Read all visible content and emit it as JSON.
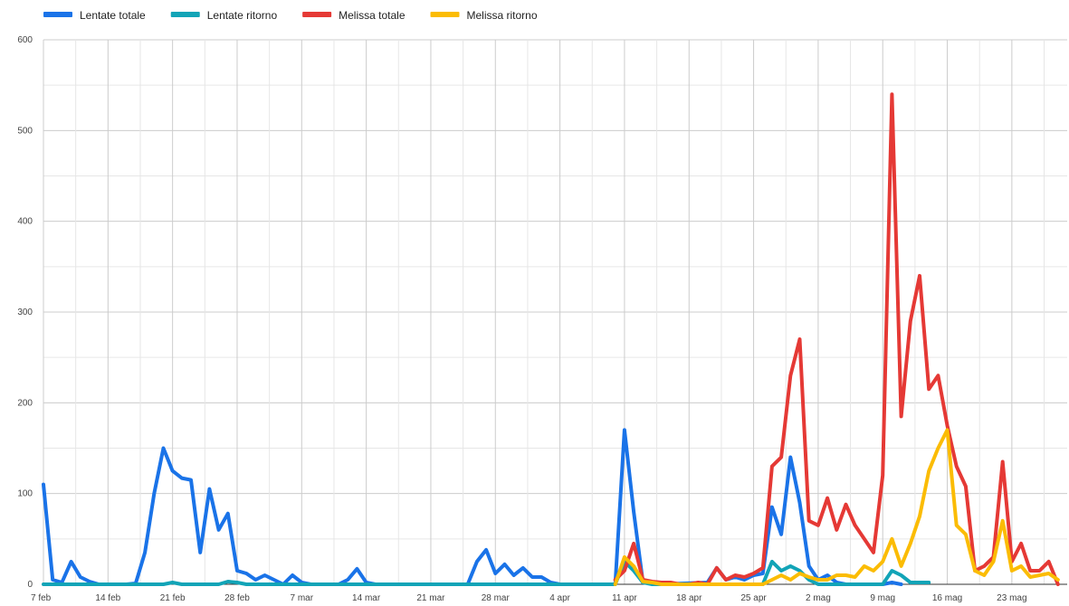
{
  "chart_data": {
    "type": "line",
    "title": "",
    "xlabel": "",
    "ylabel": "",
    "ylim": [
      0,
      600
    ],
    "yticks": [
      0,
      100,
      200,
      300,
      400,
      500,
      600
    ],
    "xlim": [
      "2021-02-07",
      "2021-05-29"
    ],
    "xticks": [
      {
        "date": "2021-02-07",
        "label": "7 feb"
      },
      {
        "date": "2021-02-14",
        "label": "14 feb"
      },
      {
        "date": "2021-02-21",
        "label": "21 feb"
      },
      {
        "date": "2021-02-28",
        "label": "28 feb"
      },
      {
        "date": "2021-03-07",
        "label": "7 mar"
      },
      {
        "date": "2021-03-14",
        "label": "14 mar"
      },
      {
        "date": "2021-03-21",
        "label": "21 mar"
      },
      {
        "date": "2021-03-28",
        "label": "28 mar"
      },
      {
        "date": "2021-04-04",
        "label": "4 apr"
      },
      {
        "date": "2021-04-11",
        "label": "11 apr"
      },
      {
        "date": "2021-04-18",
        "label": "18 apr"
      },
      {
        "date": "2021-04-25",
        "label": "25 apr"
      },
      {
        "date": "2021-05-02",
        "label": "2 mag"
      },
      {
        "date": "2021-05-09",
        "label": "9 mag"
      },
      {
        "date": "2021-05-16",
        "label": "16 mag"
      },
      {
        "date": "2021-05-23",
        "label": "23 mag"
      }
    ],
    "grid": true,
    "legend_position": "top-left",
    "series": [
      {
        "name": "Lentate totale",
        "color": "#1a73e8",
        "points": [
          [
            "2021-02-07",
            110
          ],
          [
            "2021-02-08",
            5
          ],
          [
            "2021-02-09",
            2
          ],
          [
            "2021-02-10",
            25
          ],
          [
            "2021-02-11",
            8
          ],
          [
            "2021-02-12",
            3
          ],
          [
            "2021-02-13",
            0
          ],
          [
            "2021-02-14",
            0
          ],
          [
            "2021-02-15",
            0
          ],
          [
            "2021-02-16",
            0
          ],
          [
            "2021-02-17",
            1
          ],
          [
            "2021-02-18",
            35
          ],
          [
            "2021-02-19",
            100
          ],
          [
            "2021-02-20",
            150
          ],
          [
            "2021-02-21",
            125
          ],
          [
            "2021-02-22",
            117
          ],
          [
            "2021-02-23",
            115
          ],
          [
            "2021-02-24",
            35
          ],
          [
            "2021-02-25",
            105
          ],
          [
            "2021-02-26",
            60
          ],
          [
            "2021-02-27",
            78
          ],
          [
            "2021-02-28",
            15
          ],
          [
            "2021-03-01",
            12
          ],
          [
            "2021-03-02",
            5
          ],
          [
            "2021-03-03",
            10
          ],
          [
            "2021-03-04",
            5
          ],
          [
            "2021-03-05",
            0
          ],
          [
            "2021-03-06",
            10
          ],
          [
            "2021-03-07",
            2
          ],
          [
            "2021-03-08",
            0
          ],
          [
            "2021-03-09",
            0
          ],
          [
            "2021-03-10",
            0
          ],
          [
            "2021-03-11",
            0
          ],
          [
            "2021-03-12",
            5
          ],
          [
            "2021-03-13",
            17
          ],
          [
            "2021-03-14",
            2
          ],
          [
            "2021-03-15",
            0
          ],
          [
            "2021-03-25",
            0
          ],
          [
            "2021-03-26",
            25
          ],
          [
            "2021-03-27",
            38
          ],
          [
            "2021-03-28",
            12
          ],
          [
            "2021-03-29",
            22
          ],
          [
            "2021-03-30",
            10
          ],
          [
            "2021-03-31",
            18
          ],
          [
            "2021-04-01",
            8
          ],
          [
            "2021-04-02",
            8
          ],
          [
            "2021-04-03",
            2
          ],
          [
            "2021-04-04",
            0
          ],
          [
            "2021-04-10",
            0
          ],
          [
            "2021-04-11",
            170
          ],
          [
            "2021-04-12",
            80
          ],
          [
            "2021-04-13",
            2
          ],
          [
            "2021-04-14",
            1
          ],
          [
            "2021-04-15",
            0
          ],
          [
            "2021-04-20",
            2
          ],
          [
            "2021-04-21",
            18
          ],
          [
            "2021-04-22",
            5
          ],
          [
            "2021-04-23",
            8
          ],
          [
            "2021-04-24",
            5
          ],
          [
            "2021-04-25",
            10
          ],
          [
            "2021-04-26",
            12
          ],
          [
            "2021-04-27",
            85
          ],
          [
            "2021-04-28",
            55
          ],
          [
            "2021-04-29",
            140
          ],
          [
            "2021-04-30",
            90
          ],
          [
            "2021-05-01",
            20
          ],
          [
            "2021-05-02",
            5
          ],
          [
            "2021-05-03",
            10
          ],
          [
            "2021-05-04",
            2
          ],
          [
            "2021-05-05",
            0
          ],
          [
            "2021-05-06",
            0
          ],
          [
            "2021-05-07",
            0
          ],
          [
            "2021-05-08",
            0
          ],
          [
            "2021-05-09",
            0
          ],
          [
            "2021-05-10",
            2
          ],
          [
            "2021-05-11",
            0
          ]
        ]
      },
      {
        "name": "Lentate ritorno",
        "color": "#12a4b7",
        "points": [
          [
            "2021-02-07",
            0
          ],
          [
            "2021-02-20",
            0
          ],
          [
            "2021-02-21",
            2
          ],
          [
            "2021-02-22",
            0
          ],
          [
            "2021-02-26",
            0
          ],
          [
            "2021-02-27",
            3
          ],
          [
            "2021-02-28",
            2
          ],
          [
            "2021-03-01",
            0
          ],
          [
            "2021-04-10",
            0
          ],
          [
            "2021-04-11",
            25
          ],
          [
            "2021-04-12",
            15
          ],
          [
            "2021-04-13",
            2
          ],
          [
            "2021-04-14",
            0
          ],
          [
            "2021-04-26",
            0
          ],
          [
            "2021-04-27",
            25
          ],
          [
            "2021-04-28",
            15
          ],
          [
            "2021-04-29",
            20
          ],
          [
            "2021-04-30",
            15
          ],
          [
            "2021-05-01",
            5
          ],
          [
            "2021-05-02",
            0
          ],
          [
            "2021-05-09",
            0
          ],
          [
            "2021-05-10",
            15
          ],
          [
            "2021-05-11",
            10
          ],
          [
            "2021-05-12",
            2
          ],
          [
            "2021-05-14",
            2
          ]
        ]
      },
      {
        "name": "Melissa totale",
        "color": "#e53935",
        "points": [
          [
            "2021-04-10",
            5
          ],
          [
            "2021-04-11",
            15
          ],
          [
            "2021-04-12",
            45
          ],
          [
            "2021-04-13",
            5
          ],
          [
            "2021-04-14",
            3
          ],
          [
            "2021-04-15",
            2
          ],
          [
            "2021-04-16",
            2
          ],
          [
            "2021-04-17",
            0
          ],
          [
            "2021-04-18",
            0
          ],
          [
            "2021-04-19",
            2
          ],
          [
            "2021-04-20",
            0
          ],
          [
            "2021-04-21",
            18
          ],
          [
            "2021-04-22",
            5
          ],
          [
            "2021-04-23",
            10
          ],
          [
            "2021-04-24",
            8
          ],
          [
            "2021-04-25",
            12
          ],
          [
            "2021-04-26",
            18
          ],
          [
            "2021-04-27",
            130
          ],
          [
            "2021-04-28",
            140
          ],
          [
            "2021-04-29",
            230
          ],
          [
            "2021-04-30",
            270
          ],
          [
            "2021-05-01",
            70
          ],
          [
            "2021-05-02",
            65
          ],
          [
            "2021-05-03",
            95
          ],
          [
            "2021-05-04",
            60
          ],
          [
            "2021-05-05",
            88
          ],
          [
            "2021-05-06",
            65
          ],
          [
            "2021-05-07",
            50
          ],
          [
            "2021-05-08",
            35
          ],
          [
            "2021-05-09",
            120
          ],
          [
            "2021-05-10",
            540
          ],
          [
            "2021-05-11",
            185
          ],
          [
            "2021-05-12",
            290
          ],
          [
            "2021-05-13",
            340
          ],
          [
            "2021-05-14",
            215
          ],
          [
            "2021-05-15",
            230
          ],
          [
            "2021-05-16",
            175
          ],
          [
            "2021-05-17",
            130
          ],
          [
            "2021-05-18",
            108
          ],
          [
            "2021-05-19",
            15
          ],
          [
            "2021-05-20",
            20
          ],
          [
            "2021-05-21",
            30
          ],
          [
            "2021-05-22",
            135
          ],
          [
            "2021-05-23",
            25
          ],
          [
            "2021-05-24",
            45
          ],
          [
            "2021-05-25",
            15
          ],
          [
            "2021-05-26",
            15
          ],
          [
            "2021-05-27",
            25
          ],
          [
            "2021-05-28",
            0
          ]
        ]
      },
      {
        "name": "Melissa ritorno",
        "color": "#fbbc04",
        "points": [
          [
            "2021-04-10",
            0
          ],
          [
            "2021-04-11",
            30
          ],
          [
            "2021-04-12",
            20
          ],
          [
            "2021-04-13",
            3
          ],
          [
            "2021-04-14",
            2
          ],
          [
            "2021-04-15",
            0
          ],
          [
            "2021-04-26",
            0
          ],
          [
            "2021-04-27",
            5
          ],
          [
            "2021-04-28",
            10
          ],
          [
            "2021-04-29",
            5
          ],
          [
            "2021-04-30",
            12
          ],
          [
            "2021-05-01",
            8
          ],
          [
            "2021-05-02",
            5
          ],
          [
            "2021-05-03",
            5
          ],
          [
            "2021-05-04",
            10
          ],
          [
            "2021-05-05",
            10
          ],
          [
            "2021-05-06",
            8
          ],
          [
            "2021-05-07",
            20
          ],
          [
            "2021-05-08",
            15
          ],
          [
            "2021-05-09",
            25
          ],
          [
            "2021-05-10",
            50
          ],
          [
            "2021-05-11",
            20
          ],
          [
            "2021-05-12",
            45
          ],
          [
            "2021-05-13",
            75
          ],
          [
            "2021-05-14",
            125
          ],
          [
            "2021-05-15",
            150
          ],
          [
            "2021-05-16",
            170
          ],
          [
            "2021-05-17",
            65
          ],
          [
            "2021-05-18",
            55
          ],
          [
            "2021-05-19",
            15
          ],
          [
            "2021-05-20",
            10
          ],
          [
            "2021-05-21",
            25
          ],
          [
            "2021-05-22",
            70
          ],
          [
            "2021-05-23",
            15
          ],
          [
            "2021-05-24",
            20
          ],
          [
            "2021-05-25",
            8
          ],
          [
            "2021-05-26",
            10
          ],
          [
            "2021-05-27",
            12
          ],
          [
            "2021-05-28",
            5
          ]
        ]
      }
    ]
  }
}
